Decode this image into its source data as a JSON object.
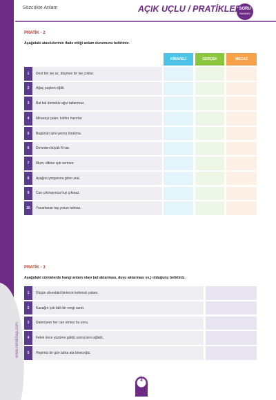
{
  "header": {
    "section": "Sözcükte Anlam",
    "title": "AÇIK UÇLU / PRATİKLER",
    "badge_top": "SORU",
    "badge_bottom": "BANKASI"
  },
  "side_url": "www.netokitap.com",
  "pratik2": {
    "title": "PRATİK - 2",
    "instruction": "Aşağıdaki atasözlerinin ifade ettiği anlam durumunu belirtiniz.",
    "columns": [
      "KİNAYELİ",
      "GERÇEK",
      "MECAZ"
    ],
    "rows": [
      {
        "num": 1,
        "text": "Dost bin ise az, düşman bir ise çoktur."
      },
      {
        "num": 2,
        "text": "Ağaç yaşken eğilir."
      },
      {
        "num": 3,
        "text": "Bal bal demekle ağız tatlanmaz."
      },
      {
        "num": 4,
        "text": "Minareyi çalan, kılıfını hazırlar."
      },
      {
        "num": 5,
        "text": "Bugünün işini yarına bırakma."
      },
      {
        "num": 6,
        "text": "Deveden büyük fil var."
      },
      {
        "num": 7,
        "text": "Mum, dibine ışık vermez."
      },
      {
        "num": 8,
        "text": "Ayağını yorganına göre uzat."
      },
      {
        "num": 9,
        "text": "Can çıkmayınca huy çıkmaz."
      },
      {
        "num": 10,
        "text": "Yuvarlanan taş yosun tutmaz."
      }
    ]
  },
  "pratik3": {
    "title": "PRATİK - 3",
    "instruction": "Aşağıdaki cümlelerde hangi anlam olayı (ad aktarması, duyu aktarması vs.) olduğunu belirtiniz.",
    "rows": [
      {
        "num": 1,
        "text": "Düşün alnındaki binlerce kefensiz yatanı."
      },
      {
        "num": 2,
        "text": "Kazağın çok tatlı bir rengi vardı."
      },
      {
        "num": 3,
        "text": "Daimi'yem her can ermez bu sırra."
      },
      {
        "num": 4,
        "text": "Felek önce yüzüme güldü sonra beni ağlattı."
      },
      {
        "num": 5,
        "text": "Hepimiz bir gün tahta ata bineceğiz."
      }
    ]
  },
  "page_number": 4
}
